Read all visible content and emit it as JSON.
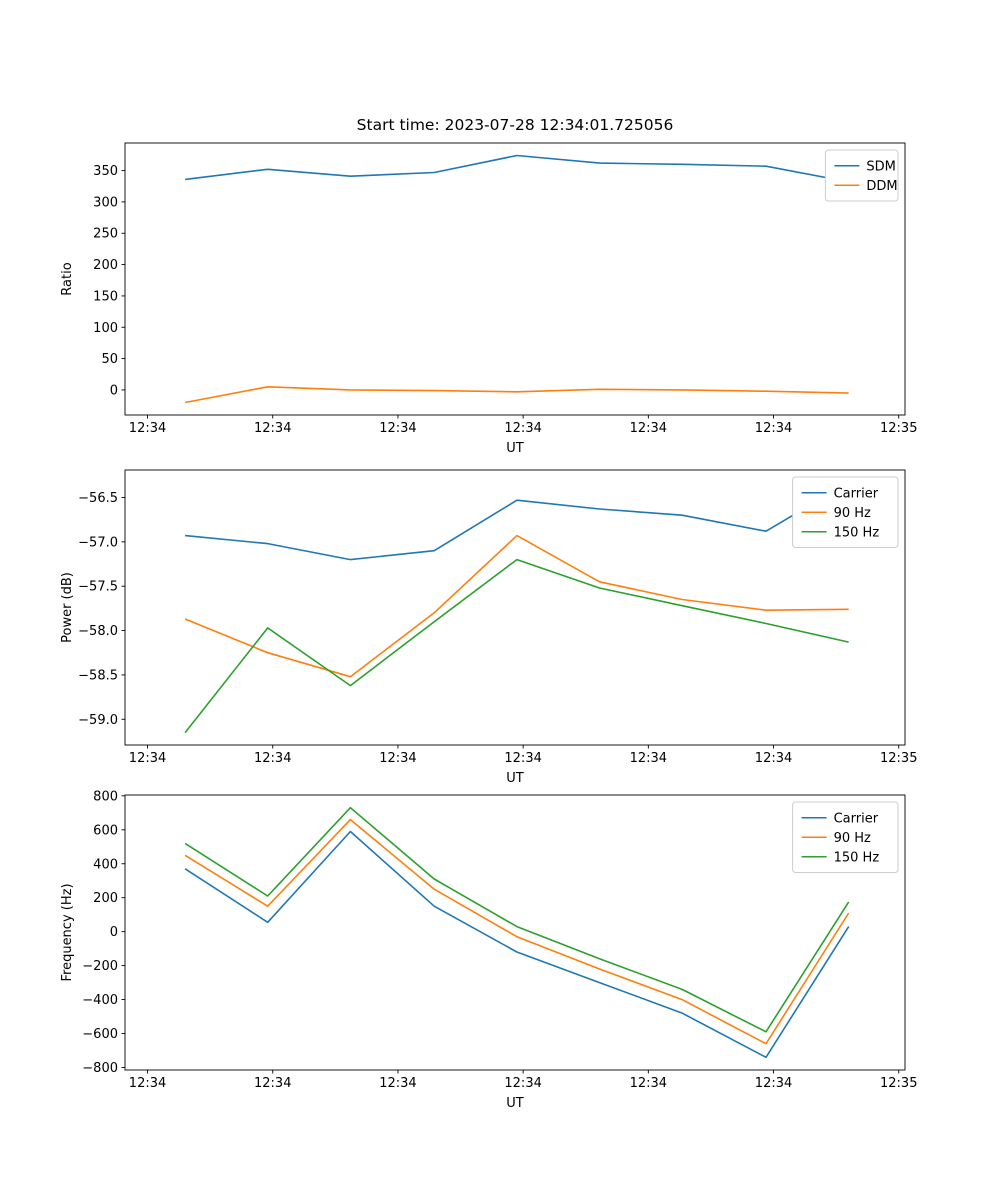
{
  "figure": {
    "background": "#ffffff",
    "palette": {
      "blue": "#1f77b4",
      "orange": "#ff7f0e",
      "green": "#2ca02c"
    }
  },
  "chart_data": [
    {
      "type": "line",
      "title": "Start time: 2023-07-28 12:34:01.725056",
      "xlabel": "UT",
      "ylabel": "Ratio",
      "grid": false,
      "legend_position": "top-right",
      "xlim": [
        -1.8,
        60.5
      ],
      "ylim": [
        -40,
        394
      ],
      "xticks": [
        0,
        10,
        20,
        30,
        40,
        50,
        60
      ],
      "xtick_labels": [
        "12:34",
        "12:34",
        "12:34",
        "12:34",
        "12:34",
        "12:34",
        "12:35"
      ],
      "yticks": [
        0,
        50,
        100,
        150,
        200,
        250,
        300,
        350
      ],
      "ytick_labels": [
        "0",
        "50",
        "100",
        "150",
        "200",
        "250",
        "300",
        "350"
      ],
      "x": [
        3,
        9.6,
        16.2,
        22.9,
        29.5,
        36.1,
        42.7,
        49.4,
        56
      ],
      "series": [
        {
          "name": "SDM",
          "color": "#1f77b4",
          "values": [
            336,
            352,
            341,
            347,
            374,
            362,
            360,
            357,
            332
          ]
        },
        {
          "name": "DDM",
          "color": "#ff7f0e",
          "values": [
            -20,
            5,
            0,
            -1,
            -3,
            1,
            0,
            -2,
            -5
          ]
        }
      ]
    },
    {
      "type": "line",
      "title": "",
      "xlabel": "UT",
      "ylabel": "Power (dB)",
      "grid": false,
      "legend_position": "top-right",
      "xlim": [
        -1.8,
        60.5
      ],
      "ylim": [
        -59.29,
        -56.19
      ],
      "xticks": [
        0,
        10,
        20,
        30,
        40,
        50,
        60
      ],
      "xtick_labels": [
        "12:34",
        "12:34",
        "12:34",
        "12:34",
        "12:34",
        "12:34",
        "12:35"
      ],
      "yticks": [
        -59.0,
        -58.5,
        -58.0,
        -57.5,
        -57.0,
        -56.5
      ],
      "ytick_labels": [
        "−59.0",
        "−58.5",
        "−58.0",
        "−57.5",
        "−57.0",
        "−56.5"
      ],
      "x": [
        3,
        9.6,
        16.2,
        22.9,
        29.5,
        36.1,
        42.7,
        49.4,
        56
      ],
      "series": [
        {
          "name": "Carrier",
          "color": "#1f77b4",
          "values": [
            -56.93,
            -57.02,
            -57.2,
            -57.1,
            -56.53,
            -56.63,
            -56.7,
            -56.88,
            -56.33
          ]
        },
        {
          "name": "90 Hz",
          "color": "#ff7f0e",
          "values": [
            -57.87,
            -58.25,
            -58.52,
            -57.8,
            -56.93,
            -57.45,
            -57.65,
            -57.77,
            -57.76
          ]
        },
        {
          "name": "150 Hz",
          "color": "#2ca02c",
          "values": [
            -59.15,
            -57.97,
            -58.62,
            -57.9,
            -57.2,
            -57.52,
            -57.72,
            -57.92,
            -58.13
          ]
        }
      ]
    },
    {
      "type": "line",
      "title": "",
      "xlabel": "UT",
      "ylabel": "Frequency (Hz)",
      "grid": false,
      "legend_position": "top-right",
      "xlim": [
        -1.8,
        60.5
      ],
      "ylim": [
        -815,
        805
      ],
      "xticks": [
        0,
        10,
        20,
        30,
        40,
        50,
        60
      ],
      "xtick_labels": [
        "12:34",
        "12:34",
        "12:34",
        "12:34",
        "12:34",
        "12:34",
        "12:35"
      ],
      "yticks": [
        -800,
        -600,
        -400,
        -200,
        0,
        200,
        400,
        600,
        800
      ],
      "ytick_labels": [
        "−800",
        "−600",
        "−400",
        "−200",
        "0",
        "200",
        "400",
        "600",
        "800"
      ],
      "x": [
        3,
        9.6,
        16.2,
        22.9,
        29.5,
        36.1,
        42.7,
        49.4,
        56
      ],
      "series": [
        {
          "name": "Carrier",
          "color": "#1f77b4",
          "values": [
            370,
            55,
            590,
            150,
            -120,
            -300,
            -480,
            -740,
            30
          ]
        },
        {
          "name": "90 Hz",
          "color": "#ff7f0e",
          "values": [
            450,
            150,
            660,
            250,
            -30,
            -220,
            -400,
            -660,
            110
          ]
        },
        {
          "name": "150 Hz",
          "color": "#2ca02c",
          "values": [
            520,
            210,
            730,
            310,
            30,
            -160,
            -340,
            -590,
            175
          ]
        }
      ]
    }
  ]
}
